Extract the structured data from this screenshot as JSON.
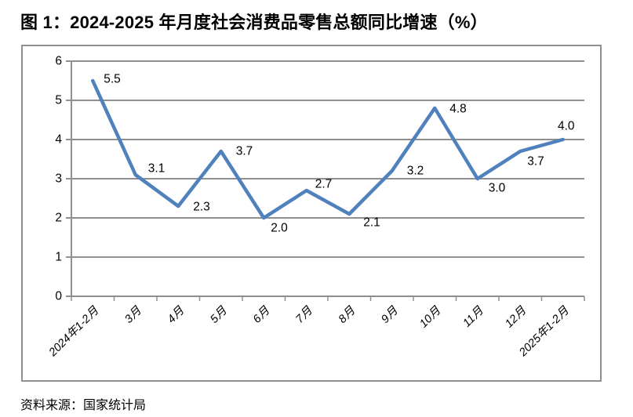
{
  "page": {
    "title": "图 1：2024-2025 年月度社会消费品零售总额同比增速（%）",
    "source": "资料来源：国家统计局"
  },
  "chart_data": {
    "type": "line",
    "title": "图 1：2024-2025 年月度社会消费品零售总额同比增速（%）",
    "categories": [
      "2024年1-2月",
      "3月",
      "4月",
      "5月",
      "6月",
      "7月",
      "8月",
      "9月",
      "10月",
      "11月",
      "12月",
      "2025年1-2月"
    ],
    "values": [
      5.5,
      3.1,
      2.3,
      3.7,
      2.0,
      2.7,
      2.1,
      3.2,
      4.8,
      3.0,
      3.7,
      4.0
    ],
    "data_labels": [
      "5.5",
      "3.1",
      "2.3",
      "3.7",
      "2.0",
      "2.7",
      "2.1",
      "3.2",
      "4.8",
      "3.0",
      "3.7",
      "4.0"
    ],
    "xlabel": "",
    "ylabel": "",
    "ylim": [
      0,
      6
    ],
    "yticks": [
      0,
      1,
      2,
      3,
      4,
      5,
      6
    ],
    "grid": "horizontal",
    "legend_position": "none",
    "line_color": "#4F81BD",
    "gridline_color": "#8f8f8f",
    "axis_color": "#8f8f8f",
    "text_color": "#000000",
    "source_note": "资料来源：国家统计局"
  }
}
